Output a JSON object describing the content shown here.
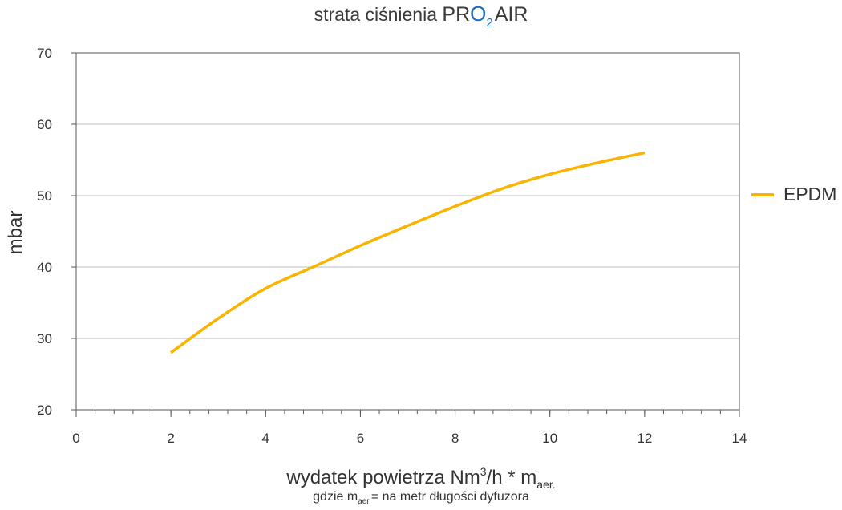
{
  "chart_data": {
    "type": "line",
    "title": {
      "prefix": "strata ciśnienia ",
      "brand_pr": "PR",
      "brand_o": "O",
      "brand_sub": "2",
      "brand_air": "AIR"
    },
    "xlabel": {
      "main": "wydatek powietrza Nm",
      "sup": "3",
      "mid": "/h * m",
      "sub": "aer."
    },
    "note": {
      "pre": "gdzie m",
      "sub": "aer.",
      "post": "= na metr długości dyfuzora"
    },
    "ylabel": "mbar",
    "xlim": [
      0,
      14
    ],
    "ylim": [
      20,
      70
    ],
    "xticks": [
      0,
      2,
      4,
      6,
      8,
      10,
      12,
      14
    ],
    "yticks": [
      20,
      30,
      40,
      50,
      60,
      70
    ],
    "grid": "horizontal",
    "legend_position": "right",
    "series": [
      {
        "name": "EPDM",
        "color": "#f8b400",
        "x": [
          2,
          3,
          4,
          5,
          6,
          7,
          8,
          9,
          10,
          11,
          12
        ],
        "y": [
          28,
          32.8,
          37,
          40,
          43,
          45.8,
          48.5,
          51,
          53,
          54.6,
          56
        ]
      }
    ]
  }
}
